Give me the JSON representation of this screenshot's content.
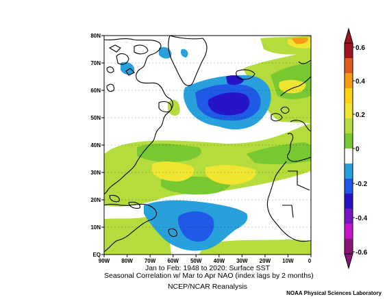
{
  "map": {
    "lat_labels": [
      "80N",
      "70N",
      "60N",
      "50N",
      "40N",
      "30N",
      "20N",
      "10N",
      "EQ"
    ],
    "lon_labels": [
      "90W",
      "80W",
      "70W",
      "60W",
      "50W",
      "40W",
      "30W",
      "20W",
      "10W",
      "0"
    ]
  },
  "colorbar": {
    "labels": [
      "0.6",
      "0.4",
      "0.2",
      "0",
      "-0.2",
      "-0.4",
      "-0.6"
    ],
    "colors": [
      "#a0141e",
      "#e15a1e",
      "#f59b14",
      "#ffd20f",
      "#f0e632",
      "#b4dc3c",
      "#78c832",
      "#ffffff",
      "#28a0dc",
      "#1e5ae6",
      "#2814c8",
      "#7814c8",
      "#c814c8",
      "#8c1478"
    ]
  },
  "caption": {
    "line1": "Jan to Feb: 1948 to 2020: Surface SST",
    "line2": "Seasonal Correlation w/ Mar to Apr NAO (index lags by 2 months)",
    "line3": "NCEP/NCAR Reanalysis"
  },
  "credit": "NOAA Physical Sciences Laboratory"
}
